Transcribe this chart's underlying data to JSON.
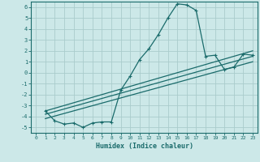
{
  "xlabel": "Humidex (Indice chaleur)",
  "bg_color": "#cce8e8",
  "grid_color": "#aacccc",
  "line_color": "#1a6b6b",
  "xlim": [
    -0.5,
    23.5
  ],
  "ylim": [
    -5.5,
    6.5
  ],
  "xticks": [
    0,
    1,
    2,
    3,
    4,
    5,
    6,
    7,
    8,
    9,
    10,
    11,
    12,
    13,
    14,
    15,
    16,
    17,
    18,
    19,
    20,
    21,
    22,
    23
  ],
  "yticks": [
    -5,
    -4,
    -3,
    -2,
    -1,
    0,
    1,
    2,
    3,
    4,
    5,
    6
  ],
  "curve1_x": [
    1,
    2,
    3,
    4,
    5,
    6,
    7,
    8,
    9,
    10,
    11,
    12,
    13,
    14,
    15,
    16,
    17,
    18,
    19,
    20,
    21,
    22,
    23
  ],
  "curve1_y": [
    -3.5,
    -4.4,
    -4.7,
    -4.6,
    -5.0,
    -4.6,
    -4.5,
    -4.5,
    -1.6,
    -0.3,
    1.2,
    2.2,
    3.5,
    5.0,
    6.3,
    6.2,
    5.7,
    1.5,
    1.6,
    0.3,
    0.5,
    1.7,
    1.6
  ],
  "line2_x": [
    1,
    23
  ],
  "line2_y": [
    -3.5,
    2.0
  ],
  "line3_x": [
    1,
    23
  ],
  "line3_y": [
    -3.8,
    1.5
  ],
  "line4_x": [
    1,
    23
  ],
  "line4_y": [
    -4.2,
    1.0
  ]
}
